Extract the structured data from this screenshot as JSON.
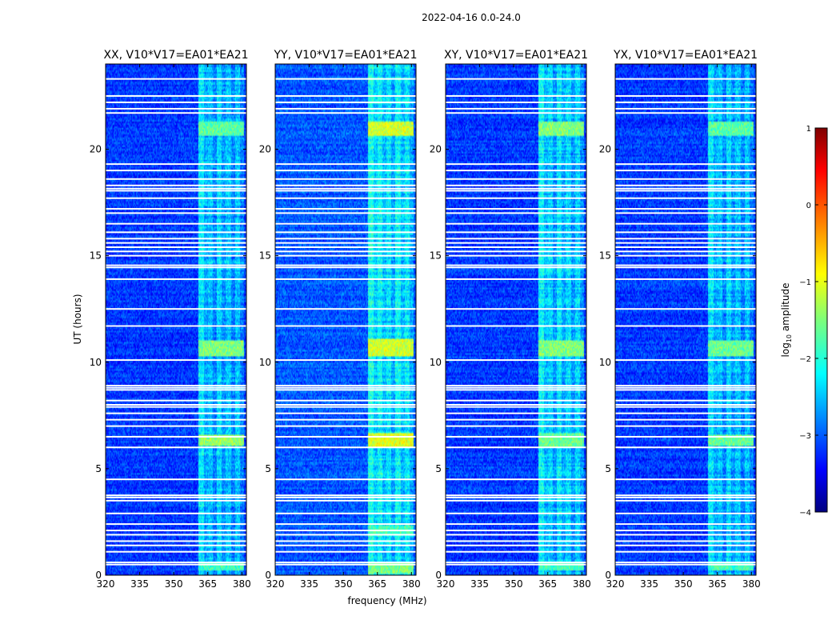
{
  "figure_title": "2022-04-16 0.0-24.0",
  "chart_data": [
    {
      "type": "heatmap",
      "title": "XX, V10*V17=EA01*EA21",
      "xlabel": "",
      "ylabel": "UT (hours)",
      "xlim": [
        320,
        382
      ],
      "ylim": [
        0,
        24
      ],
      "xticks": [
        320,
        335,
        350,
        365,
        380
      ],
      "yticks": [
        0,
        5,
        10,
        15,
        20
      ],
      "colormap": "jet",
      "clim": [
        -4,
        1
      ],
      "background_level": -3.1,
      "bright_channels": [
        {
          "freq_start": 361,
          "freq_end": 365,
          "level": -2.2
        },
        {
          "freq_start": 365,
          "freq_end": 369,
          "level": -2.4
        },
        {
          "freq_start": 369,
          "freq_end": 373,
          "level": -2.3
        },
        {
          "freq_start": 373,
          "freq_end": 377,
          "level": -2.4
        },
        {
          "freq_start": 377,
          "freq_end": 381,
          "level": -2.4
        }
      ],
      "rfi_events": [
        {
          "t0": 20.6,
          "t1": 21.3,
          "level": -1.7
        },
        {
          "t0": 10.3,
          "t1": 11.0,
          "level": -1.5
        },
        {
          "t0": 6.1,
          "t1": 6.6,
          "level": -1.4
        },
        {
          "t0": 0.2,
          "t1": 0.6,
          "level": -1.8
        }
      ],
      "flagged_hours": [
        0.5,
        0.6,
        1.1,
        1.4,
        1.6,
        1.9,
        2.1,
        2.4,
        2.9,
        3.5,
        3.65,
        3.75,
        4.5,
        6.0,
        6.5,
        7.0,
        7.3,
        7.6,
        7.9,
        8.0,
        8.2,
        8.7,
        8.8,
        8.9,
        10.1,
        11.7,
        12.5,
        13.9,
        14.45,
        14.55,
        15.0,
        15.2,
        15.4,
        15.6,
        15.8,
        16.1,
        16.5,
        17.0,
        17.2,
        17.7,
        18.05,
        18.15,
        18.3,
        18.6,
        19.0,
        19.3,
        21.7,
        21.9,
        22.2,
        22.5,
        23.3
      ]
    },
    {
      "type": "heatmap",
      "title": "YY, V10*V17=EA01*EA21",
      "xlabel": "frequency (MHz)",
      "ylabel": "",
      "xlim": [
        320,
        382
      ],
      "ylim": [
        0,
        24
      ],
      "xticks": [
        320,
        335,
        350,
        365,
        380
      ],
      "yticks": [
        0,
        5,
        10,
        15,
        20
      ],
      "colormap": "jet",
      "clim": [
        -4,
        1
      ],
      "background_level": -2.95,
      "bright_channels": [
        {
          "freq_start": 361,
          "freq_end": 365,
          "level": -2.0
        },
        {
          "freq_start": 365,
          "freq_end": 369,
          "level": -2.1
        },
        {
          "freq_start": 369,
          "freq_end": 373,
          "level": -2.2
        },
        {
          "freq_start": 373,
          "freq_end": 377,
          "level": -2.1
        },
        {
          "freq_start": 377,
          "freq_end": 381,
          "level": -2.2
        }
      ],
      "rfi_events": [
        {
          "t0": 20.6,
          "t1": 21.3,
          "level": -1.1
        },
        {
          "t0": 10.3,
          "t1": 11.1,
          "level": -1.1
        },
        {
          "t0": 6.0,
          "t1": 6.7,
          "level": -1.0
        },
        {
          "t0": 0.1,
          "t1": 0.6,
          "level": -1.5
        },
        {
          "t0": 1.9,
          "t1": 2.3,
          "level": -1.8
        }
      ],
      "flagged_hours": [
        0.5,
        0.6,
        1.1,
        1.4,
        1.6,
        1.9,
        2.1,
        2.4,
        2.9,
        3.5,
        3.65,
        3.75,
        4.5,
        6.0,
        6.5,
        7.0,
        7.3,
        7.6,
        7.9,
        8.0,
        8.2,
        8.7,
        8.8,
        8.9,
        10.1,
        11.7,
        12.5,
        13.9,
        14.45,
        14.55,
        15.0,
        15.2,
        15.4,
        15.6,
        15.8,
        16.1,
        16.5,
        17.0,
        17.2,
        17.7,
        18.05,
        18.15,
        18.3,
        18.6,
        19.0,
        19.3,
        21.7,
        21.9,
        22.2,
        22.5,
        23.3
      ]
    },
    {
      "type": "heatmap",
      "title": "XY, V10*V17=EA01*EA21",
      "xlabel": "",
      "ylabel": "",
      "xlim": [
        320,
        382
      ],
      "ylim": [
        0,
        24
      ],
      "xticks": [
        320,
        335,
        350,
        365,
        380
      ],
      "yticks": [
        0,
        5,
        10,
        15,
        20
      ],
      "colormap": "jet",
      "clim": [
        -4,
        1
      ],
      "background_level": -3.1,
      "bright_channels": [
        {
          "freq_start": 361,
          "freq_end": 365,
          "level": -2.1
        },
        {
          "freq_start": 365,
          "freq_end": 369,
          "level": -2.3
        },
        {
          "freq_start": 369,
          "freq_end": 373,
          "level": -2.2
        },
        {
          "freq_start": 373,
          "freq_end": 377,
          "level": -2.3
        },
        {
          "freq_start": 377,
          "freq_end": 381,
          "level": -2.3
        }
      ],
      "rfi_events": [
        {
          "t0": 20.6,
          "t1": 21.3,
          "level": -1.5
        },
        {
          "t0": 10.3,
          "t1": 11.0,
          "level": -1.5
        },
        {
          "t0": 6.0,
          "t1": 6.7,
          "level": -1.6
        },
        {
          "t0": 0.2,
          "t1": 0.6,
          "level": -1.8
        }
      ],
      "flagged_hours": [
        0.5,
        0.6,
        1.1,
        1.4,
        1.6,
        1.9,
        2.1,
        2.4,
        2.9,
        3.5,
        3.65,
        3.75,
        4.5,
        6.0,
        6.5,
        7.0,
        7.3,
        7.6,
        7.9,
        8.0,
        8.2,
        8.7,
        8.8,
        8.9,
        10.1,
        11.7,
        12.5,
        13.9,
        14.45,
        14.55,
        15.0,
        15.2,
        15.4,
        15.6,
        15.8,
        16.1,
        16.5,
        17.0,
        17.2,
        17.7,
        18.05,
        18.15,
        18.3,
        18.6,
        19.0,
        19.3,
        21.7,
        21.9,
        22.2,
        22.5,
        23.3
      ]
    },
    {
      "type": "heatmap",
      "title": "YX, V10*V17=EA01*EA21",
      "xlabel": "",
      "ylabel": "",
      "xlim": [
        320,
        382
      ],
      "ylim": [
        0,
        24
      ],
      "xticks": [
        320,
        335,
        350,
        365,
        380
      ],
      "yticks": [
        0,
        5,
        10,
        15,
        20
      ],
      "colormap": "jet",
      "clim": [
        -4,
        1
      ],
      "background_level": -3.1,
      "bright_channels": [
        {
          "freq_start": 361,
          "freq_end": 365,
          "level": -2.2
        },
        {
          "freq_start": 365,
          "freq_end": 369,
          "level": -2.4
        },
        {
          "freq_start": 369,
          "freq_end": 373,
          "level": -2.3
        },
        {
          "freq_start": 373,
          "freq_end": 377,
          "level": -2.4
        },
        {
          "freq_start": 377,
          "freq_end": 381,
          "level": -2.4
        }
      ],
      "rfi_events": [
        {
          "t0": 20.6,
          "t1": 21.3,
          "level": -1.7
        },
        {
          "t0": 10.3,
          "t1": 11.0,
          "level": -1.6
        },
        {
          "t0": 6.1,
          "t1": 6.6,
          "level": -1.6
        },
        {
          "t0": 0.2,
          "t1": 0.6,
          "level": -1.8
        }
      ],
      "flagged_hours": [
        0.5,
        0.6,
        1.1,
        1.4,
        1.6,
        1.9,
        2.1,
        2.4,
        2.9,
        3.5,
        3.65,
        3.75,
        4.5,
        6.0,
        6.5,
        7.0,
        7.3,
        7.6,
        7.9,
        8.0,
        8.2,
        8.7,
        8.8,
        8.9,
        10.1,
        11.7,
        12.5,
        13.9,
        14.45,
        14.55,
        15.0,
        15.2,
        15.4,
        15.6,
        15.8,
        16.1,
        16.5,
        17.0,
        17.2,
        17.7,
        18.05,
        18.15,
        18.3,
        18.6,
        19.0,
        19.3,
        21.7,
        21.9,
        22.2,
        22.5,
        23.3
      ]
    }
  ],
  "colorbar": {
    "label_base": "log",
    "label_sub": "10",
    "label_rest": " amplitude",
    "range": [
      -4,
      1
    ],
    "ticks": [
      1,
      0,
      -1,
      -2,
      -3,
      -4
    ],
    "tick_labels": [
      "1",
      "0",
      "−1",
      "−2",
      "−3",
      "−4"
    ],
    "colormap": "jet"
  }
}
